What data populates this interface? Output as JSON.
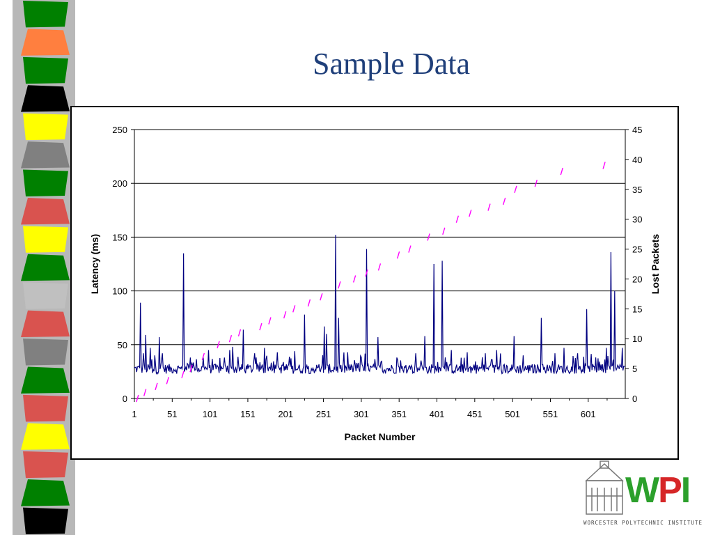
{
  "slide": {
    "title": "Sample Data"
  },
  "decor": {
    "strip_colors": [
      "#008000",
      "#ff7f3f",
      "#008000",
      "#000000",
      "#ffff00",
      "#808080",
      "#008000",
      "#d9534f",
      "#ffff00",
      "#008000",
      "#c0c0c0",
      "#d9534f",
      "#808080",
      "#008000",
      "#d9534f",
      "#ffff00",
      "#d9534f",
      "#008000",
      "#000000"
    ]
  },
  "logo": {
    "w": "W",
    "p": "P",
    "i": "I",
    "caption": "WORCESTER POLYTECHNIC INSTITUTE"
  },
  "chart_data": {
    "type": "line",
    "xlabel": "Packet Number",
    "ylabel": "Latency (ms)",
    "y2label": "Lost Packets",
    "x_ticks": [
      "1",
      "51",
      "101",
      "151",
      "201",
      "251",
      "301",
      "351",
      "401",
      "451",
      "501",
      "551",
      "601"
    ],
    "xlim": [
      1,
      650
    ],
    "ylim": [
      0,
      250
    ],
    "y_ticks": [
      "0",
      "50",
      "100",
      "150",
      "200",
      "250"
    ],
    "y2lim": [
      0,
      45
    ],
    "y2_ticks": [
      "0",
      "5",
      "10",
      "15",
      "20",
      "25",
      "30",
      "35",
      "40",
      "45"
    ],
    "grid": "horizontal at major y ticks",
    "colors": {
      "latency": "#000080",
      "lost": "#ff00ff"
    },
    "series": [
      {
        "axis": "left",
        "style": "solid",
        "baseline_ms": 27,
        "spikes": [
          [
            9,
            89
          ],
          [
            13,
            42
          ],
          [
            16,
            59
          ],
          [
            22,
            47
          ],
          [
            28,
            40
          ],
          [
            34,
            57
          ],
          [
            38,
            42
          ],
          [
            66,
            135
          ],
          [
            75,
            38
          ],
          [
            92,
            38
          ],
          [
            99,
            45
          ],
          [
            120,
            38
          ],
          [
            127,
            45
          ],
          [
            131,
            48
          ],
          [
            145,
            64
          ],
          [
            160,
            42
          ],
          [
            173,
            47
          ],
          [
            190,
            43
          ],
          [
            213,
            44
          ],
          [
            226,
            78
          ],
          [
            252,
            67
          ],
          [
            255,
            60
          ],
          [
            267,
            152
          ],
          [
            271,
            75
          ],
          [
            283,
            43
          ],
          [
            308,
            139
          ],
          [
            323,
            57
          ],
          [
            348,
            38
          ],
          [
            373,
            42
          ],
          [
            385,
            58
          ],
          [
            397,
            125
          ],
          [
            408,
            128
          ],
          [
            420,
            45
          ],
          [
            441,
            43
          ],
          [
            465,
            42
          ],
          [
            480,
            45
          ],
          [
            503,
            58
          ],
          [
            515,
            40
          ],
          [
            539,
            75
          ],
          [
            557,
            42
          ],
          [
            569,
            47
          ],
          [
            587,
            42
          ],
          [
            599,
            83
          ],
          [
            625,
            47
          ],
          [
            631,
            136
          ],
          [
            636,
            100
          ],
          [
            646,
            47
          ]
        ]
      },
      {
        "axis": "right",
        "style": "dashed",
        "x": [
          5,
          15,
          30,
          45,
          65,
          76,
          92,
          112,
          128,
          140,
          168,
          180,
          200,
          212,
          232,
          248,
          272,
          292,
          308,
          325,
          350,
          365,
          390,
          410,
          428,
          445,
          470,
          490,
          505,
          532,
          566,
          622
        ],
        "y": [
          0,
          1,
          2,
          3,
          4,
          5,
          7,
          9,
          10,
          11,
          12,
          13,
          14,
          15,
          16,
          17,
          19,
          20,
          21,
          22,
          24,
          25,
          27,
          28,
          30,
          31,
          32,
          33,
          35,
          36,
          38,
          39
        ]
      }
    ]
  }
}
